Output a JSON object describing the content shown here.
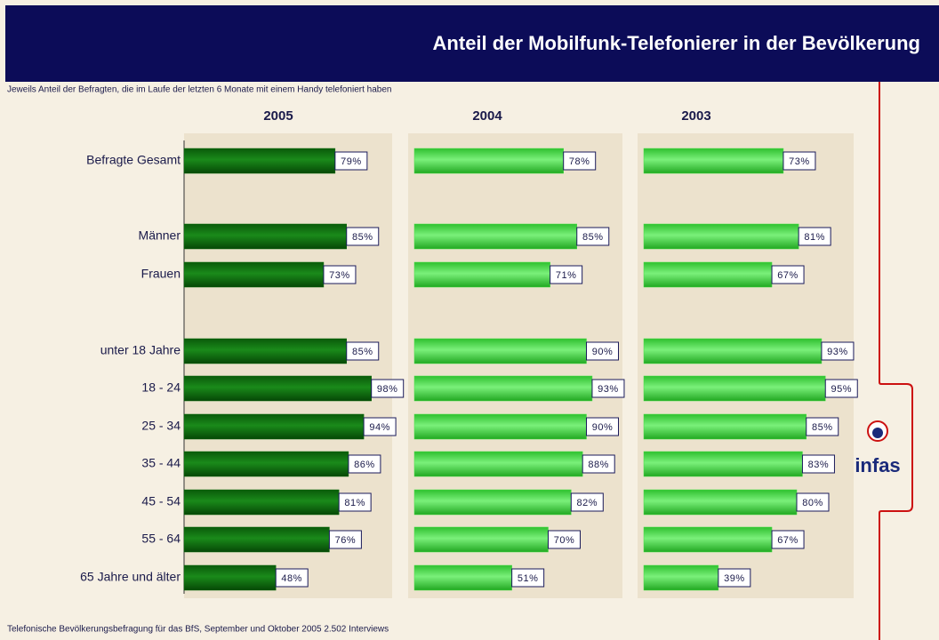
{
  "chart_data": {
    "type": "bar",
    "orientation": "horizontal",
    "title": "Anteil der Mobilfunk-Telefonierer in der Bevölkerung",
    "subtitle": "Jeweils Anteil der Befragten, die im Laufe der letzten 6 Monate mit einem Handy telefoniert haben",
    "footer": "Telefonische Bevölkerungsbefragung für das BfS, September und Oktober 2005 2.502 Interviews",
    "logo": "infas",
    "categories": [
      "Befragte Gesamt",
      "Männer",
      "Frauen",
      "unter 18 Jahre",
      "18 - 24",
      "25 - 34",
      "35 - 44",
      "45 - 54",
      "55 - 64",
      "65 Jahre und älter"
    ],
    "series": [
      {
        "name": "2005",
        "color": "#0b6b0b",
        "values": [
          79,
          85,
          73,
          85,
          98,
          94,
          86,
          81,
          76,
          48
        ],
        "value_labels": [
          "79%",
          "85%",
          "73%",
          "85%",
          "98%",
          "94%",
          "86%",
          "81%",
          "76%",
          "48%"
        ]
      },
      {
        "name": "2004",
        "color": "#44dd44",
        "values": [
          78,
          85,
          71,
          90,
          93,
          90,
          88,
          82,
          70,
          51
        ],
        "value_labels": [
          "78%",
          "85%",
          "71%",
          "90%",
          "93%",
          "90%",
          "88%",
          "82%",
          "70%",
          "51%"
        ]
      },
      {
        "name": "2003",
        "color": "#44dd44",
        "values": [
          73,
          81,
          67,
          93,
          95,
          85,
          83,
          80,
          67,
          39
        ],
        "value_labels": [
          "73%",
          "81%",
          "67%",
          "93%",
          "95%",
          "85%",
          "83%",
          "80%",
          "67%",
          "39%"
        ]
      }
    ]
  }
}
